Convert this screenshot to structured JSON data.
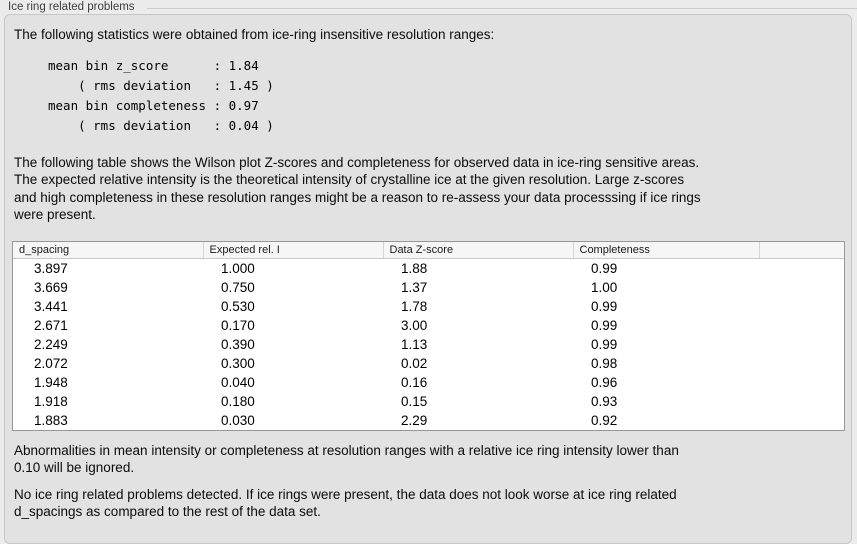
{
  "panel": {
    "title": "Ice ring related problems"
  },
  "intro": "The following statistics were obtained from ice-ring insensitive resolution ranges:",
  "stats_lines": [
    "mean bin z_score      : 1.84",
    "    ( rms deviation   : 1.45 )",
    "mean bin completeness : 0.97",
    "    ( rms deviation   : 0.04 )"
  ],
  "description_lines": [
    "The following table shows the Wilson plot Z-scores and completeness for observed data in ice-ring sensitive areas.",
    "The expected relative intensity is the theoretical intensity of crystalline ice at the given resolution. Large z-scores",
    "and high completeness in these resolution ranges might be a reason to re-assess your data processsing if ice rings",
    "were present."
  ],
  "table": {
    "columns": [
      "d_spacing",
      "Expected rel. I",
      "Data Z-score",
      "Completeness"
    ],
    "rows": [
      [
        "3.897",
        "1.000",
        "1.88",
        "0.99"
      ],
      [
        "3.669",
        "0.750",
        "1.37",
        "1.00"
      ],
      [
        "3.441",
        "0.530",
        "1.78",
        "0.99"
      ],
      [
        "2.671",
        "0.170",
        "3.00",
        "0.99"
      ],
      [
        "2.249",
        "0.390",
        "1.13",
        "0.99"
      ],
      [
        "2.072",
        "0.300",
        "0.02",
        "0.98"
      ],
      [
        "1.948",
        "0.040",
        "0.16",
        "0.96"
      ],
      [
        "1.918",
        "0.180",
        "0.15",
        "0.93"
      ],
      [
        "1.883",
        "0.030",
        "2.29",
        "0.92"
      ]
    ]
  },
  "note_lines": [
    "Abnormalities in mean intensity or completeness at resolution ranges with a relative ice ring intensity lower than",
    "0.10 will be ignored."
  ],
  "conclusion_lines": [
    "No ice ring related problems detected. If ice rings were present, the data does not look worse at ice ring related",
    "d_spacings as compared to the rest of the data set."
  ],
  "colors": {
    "page_bg": "#ececec",
    "box_bg": "#e2e2e2",
    "box_border": "#c7c7c7",
    "table_bg": "#ffffff",
    "table_border": "#979797",
    "table_header_bg": "#f6f6f6"
  }
}
